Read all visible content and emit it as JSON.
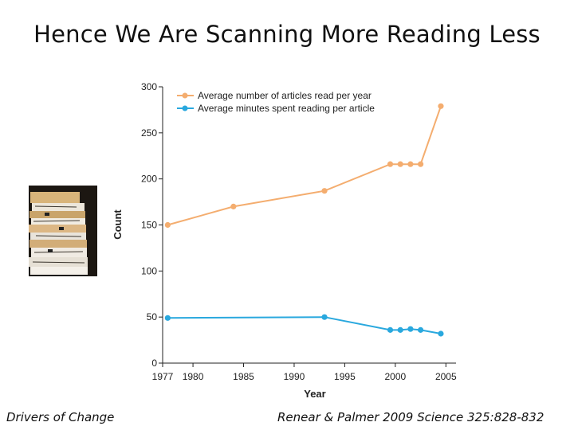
{
  "slide": {
    "title": "Hence We Are Scanning More Reading Less",
    "footer_left": "Drivers of Change",
    "footer_right": "Renear & Palmer 2009 Science 325:828-832"
  },
  "image": {
    "icon": "stack-of-papers-photo"
  },
  "chart_data": {
    "type": "line",
    "xlabel": "Year",
    "ylabel": "Count",
    "xlim": [
      1977,
      2006
    ],
    "ylim": [
      0,
      300
    ],
    "xticks": [
      1977,
      1980,
      1985,
      1990,
      1995,
      2000,
      2005
    ],
    "yticks": [
      0,
      50,
      100,
      150,
      200,
      250,
      300
    ],
    "legend_position": "top-left",
    "series": [
      {
        "name": "Average number of articles read per year",
        "color": "#f4ad6f",
        "x": [
          1977.5,
          1984,
          1993,
          1999.5,
          2000.5,
          2001.5,
          2002.5,
          2004.5
        ],
        "values": [
          150,
          170,
          187,
          216,
          216,
          216,
          216,
          279
        ]
      },
      {
        "name": "Average minutes spent reading per article",
        "color": "#29a8de",
        "x": [
          1977.5,
          1993,
          1999.5,
          2000.5,
          2001.5,
          2002.5,
          2004.5
        ],
        "values": [
          49,
          50,
          36,
          36,
          37,
          36,
          32
        ]
      }
    ]
  }
}
